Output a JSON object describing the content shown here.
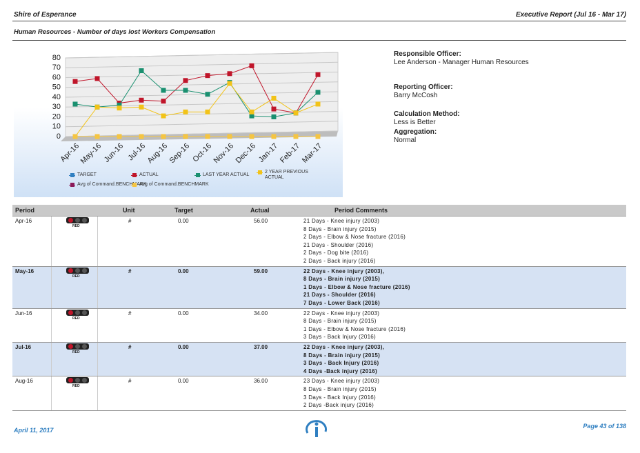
{
  "header": {
    "org": "Shire of Esperance",
    "report": "Executive Report (Jul 16 - Mar 17)",
    "subtitle": "Human Resources - Number of days lost Workers Compensation"
  },
  "chart_data": {
    "type": "line",
    "categories": [
      "Apr-16",
      "May-16",
      "Jun-16",
      "Jul-16",
      "Aug-16",
      "Sep-16",
      "Oct-16",
      "Nov-16",
      "Dec-16",
      "Jan-17",
      "Feb-17",
      "Mar-17"
    ],
    "series": [
      {
        "name": "TARGET",
        "color": "#2f7fc1",
        "values": [
          0,
          0,
          0,
          0,
          0,
          0,
          0,
          0,
          0,
          0,
          0,
          0
        ]
      },
      {
        "name": "ACTUAL",
        "color": "#c0152a",
        "values": [
          56,
          59,
          34,
          37,
          36,
          57,
          62,
          64,
          72,
          28,
          24,
          63
        ]
      },
      {
        "name": "LAST YEAR ACTUAL",
        "color": "#1a9070",
        "values": [
          33,
          30,
          32,
          67,
          47,
          47,
          43,
          55,
          21,
          20,
          24,
          45
        ]
      },
      {
        "name": "2 YEAR PREVIOUS ACTUAL",
        "color": "#f2c318",
        "values": [
          0,
          30,
          29,
          30,
          21,
          25,
          25,
          54,
          25,
          39,
          24,
          33
        ]
      },
      {
        "name": "Avg of Command.BENCHMARK",
        "color": "#8b1a5a",
        "values": [
          null,
          null,
          null,
          null,
          null,
          null,
          null,
          null,
          null,
          null,
          null,
          null
        ]
      },
      {
        "name": "Avg of Command.BENCHMARK",
        "color": "#f5c542",
        "values": [
          0,
          0,
          0,
          0,
          0,
          0,
          0,
          0,
          0,
          0,
          0,
          0
        ]
      }
    ],
    "ylim": [
      0,
      80
    ],
    "yticks": [
      0,
      10,
      20,
      30,
      40,
      50,
      60,
      70,
      80
    ],
    "grid": true
  },
  "info": [
    {
      "label": "Responsible Officer:",
      "value": "Lee Anderson - Manager Human Resources"
    },
    {
      "label": "Reporting Officer:",
      "value": "Barry McCosh"
    },
    {
      "label": "Calculation Method:",
      "value": "Less is Better"
    },
    {
      "label": "Aggregation:",
      "value": "Normal"
    }
  ],
  "table": {
    "columns": [
      "Period",
      "Unit",
      "Target",
      "Actual",
      "Period Comments"
    ],
    "rows": [
      {
        "period": "Apr-16",
        "status": "RED",
        "unit": "#",
        "target": "0.00",
        "actual": "56.00",
        "highlight": false,
        "comments": [
          "21 Days - Knee injury (2003)",
          "8 Days - Brain injury (2015)",
          "2 Days - Elbow & Nose fracture (2016)",
          "21 Days - Shoulder (2016)",
          "2 Days - Dog bite (2016)",
          "2 Days - Back injury (2016)"
        ]
      },
      {
        "period": "May-16",
        "status": "RED",
        "unit": "#",
        "target": "0.00",
        "actual": "59.00",
        "highlight": true,
        "comments": [
          "22 Days - Knee injury (2003),",
          "8 Days - Brain injury (2015)",
          "1 Days - Elbow & Nose fracture (2016)",
          "21 Days - Shoulder (2016)",
          "7 Days - Lower Back (2016)"
        ]
      },
      {
        "period": "Jun-16",
        "status": "RED",
        "unit": "#",
        "target": "0.00",
        "actual": "34.00",
        "highlight": false,
        "comments": [
          "22 Days - Knee injury (2003)",
          "8 Days - Brain injury (2015)",
          "1 Days - Elbow & Nose fracture (2016)",
          "3 Days - Back Injury (2016)"
        ]
      },
      {
        "period": "Jul-16",
        "status": "RED",
        "unit": "#",
        "target": "0.00",
        "actual": "37.00",
        "highlight": true,
        "comments": [
          "22 Days - Knee injury (2003),",
          "8 Days - Brain injury (2015)",
          "3 Days - Back Injury (2016)",
          "4 Days -Back injury (2016)"
        ]
      },
      {
        "period": "Aug-16",
        "status": "RED",
        "unit": "#",
        "target": "0.00",
        "actual": "36.00",
        "highlight": false,
        "comments": [
          "23 Days - Knee injury (2003)",
          "8 Days - Brain injury (2015)",
          "3 Days - Back Injury (2016)",
          "2 Days -Back injury (2016)"
        ]
      }
    ]
  },
  "footer": {
    "date": "April 11, 2017",
    "page": "Page 43 of 138"
  }
}
